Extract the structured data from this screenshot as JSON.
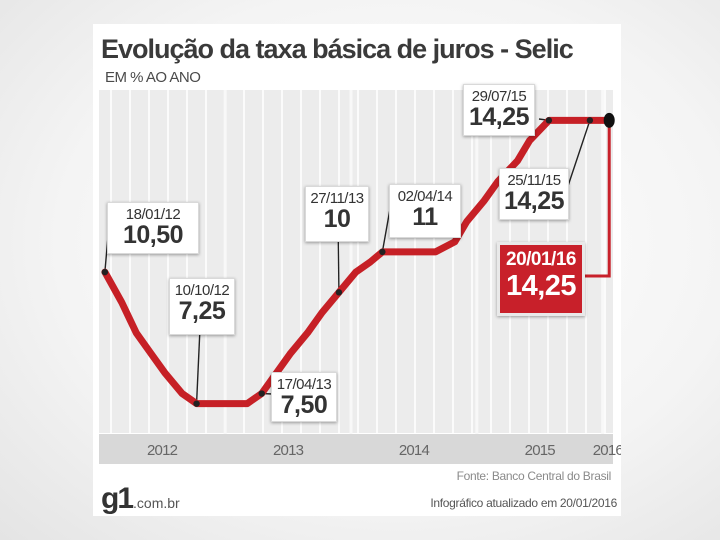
{
  "chart_data": {
    "type": "line",
    "title": "Evolução da taxa básica de juros - Selic",
    "subtitle": "EM % AO ANO",
    "xlabel": "",
    "ylabel": "",
    "x_ticks": [
      "2012",
      "2013",
      "2014",
      "2015",
      "2016"
    ],
    "x_range": [
      "2012-01-01",
      "2016-01-31"
    ],
    "ylim": [
      6.5,
      15
    ],
    "grid": true,
    "line_color": "#c62026",
    "highlight_color": "#c8202a",
    "series": [
      {
        "points": [
          {
            "x": "2012-01-18",
            "y": 10.5
          },
          {
            "x": "2012-03-07",
            "y": 9.75
          },
          {
            "x": "2012-04-18",
            "y": 9.0
          },
          {
            "x": "2012-05-30",
            "y": 8.5
          },
          {
            "x": "2012-07-11",
            "y": 8.0
          },
          {
            "x": "2012-08-29",
            "y": 7.5
          },
          {
            "x": "2012-10-10",
            "y": 7.25
          },
          {
            "x": "2012-11-28",
            "y": 7.25
          },
          {
            "x": "2013-01-16",
            "y": 7.25
          },
          {
            "x": "2013-03-06",
            "y": 7.25
          },
          {
            "x": "2013-04-17",
            "y": 7.5
          },
          {
            "x": "2013-05-29",
            "y": 8.0
          },
          {
            "x": "2013-07-10",
            "y": 8.5
          },
          {
            "x": "2013-08-28",
            "y": 9.0
          },
          {
            "x": "2013-10-09",
            "y": 9.5
          },
          {
            "x": "2013-11-27",
            "y": 10.0
          },
          {
            "x": "2014-01-15",
            "y": 10.5
          },
          {
            "x": "2014-02-26",
            "y": 10.75
          },
          {
            "x": "2014-04-02",
            "y": 11.0
          },
          {
            "x": "2014-05-28",
            "y": 11.0
          },
          {
            "x": "2014-07-16",
            "y": 11.0
          },
          {
            "x": "2014-09-03",
            "y": 11.0
          },
          {
            "x": "2014-10-29",
            "y": 11.25
          },
          {
            "x": "2014-12-03",
            "y": 11.75
          },
          {
            "x": "2015-01-21",
            "y": 12.25
          },
          {
            "x": "2015-03-04",
            "y": 12.75
          },
          {
            "x": "2015-04-29",
            "y": 13.25
          },
          {
            "x": "2015-06-03",
            "y": 13.75
          },
          {
            "x": "2015-07-29",
            "y": 14.25
          },
          {
            "x": "2015-09-02",
            "y": 14.25
          },
          {
            "x": "2015-10-21",
            "y": 14.25
          },
          {
            "x": "2015-11-25",
            "y": 14.25
          },
          {
            "x": "2016-01-20",
            "y": 14.25
          }
        ]
      }
    ],
    "annotations": [
      {
        "date": "18/01/12",
        "value": "10,50",
        "x": "2012-01-18",
        "y": 10.5,
        "highlight": false
      },
      {
        "date": "10/10/12",
        "value": "7,25",
        "x": "2012-10-10",
        "y": 7.25,
        "highlight": false
      },
      {
        "date": "17/04/13",
        "value": "7,50",
        "x": "2013-04-17",
        "y": 7.5,
        "highlight": false
      },
      {
        "date": "27/11/13",
        "value": "10",
        "x": "2013-11-27",
        "y": 10.0,
        "highlight": false
      },
      {
        "date": "02/04/14",
        "value": "11",
        "x": "2014-04-02",
        "y": 11.0,
        "highlight": false
      },
      {
        "date": "29/07/15",
        "value": "14,25",
        "x": "2015-07-29",
        "y": 14.25,
        "highlight": false
      },
      {
        "date": "25/11/15",
        "value": "14,25",
        "x": "2015-11-25",
        "y": 14.25,
        "highlight": false
      },
      {
        "date": "20/01/16",
        "value": "14,25",
        "x": "2016-01-20",
        "y": 14.25,
        "highlight": true
      }
    ]
  },
  "footer": {
    "source": "Fonte: Banco Central do Brasil",
    "updated": "Infográfico atualizado em 20/01/2016",
    "logo_mark": "g1",
    "logo_domain": ".com.br"
  }
}
